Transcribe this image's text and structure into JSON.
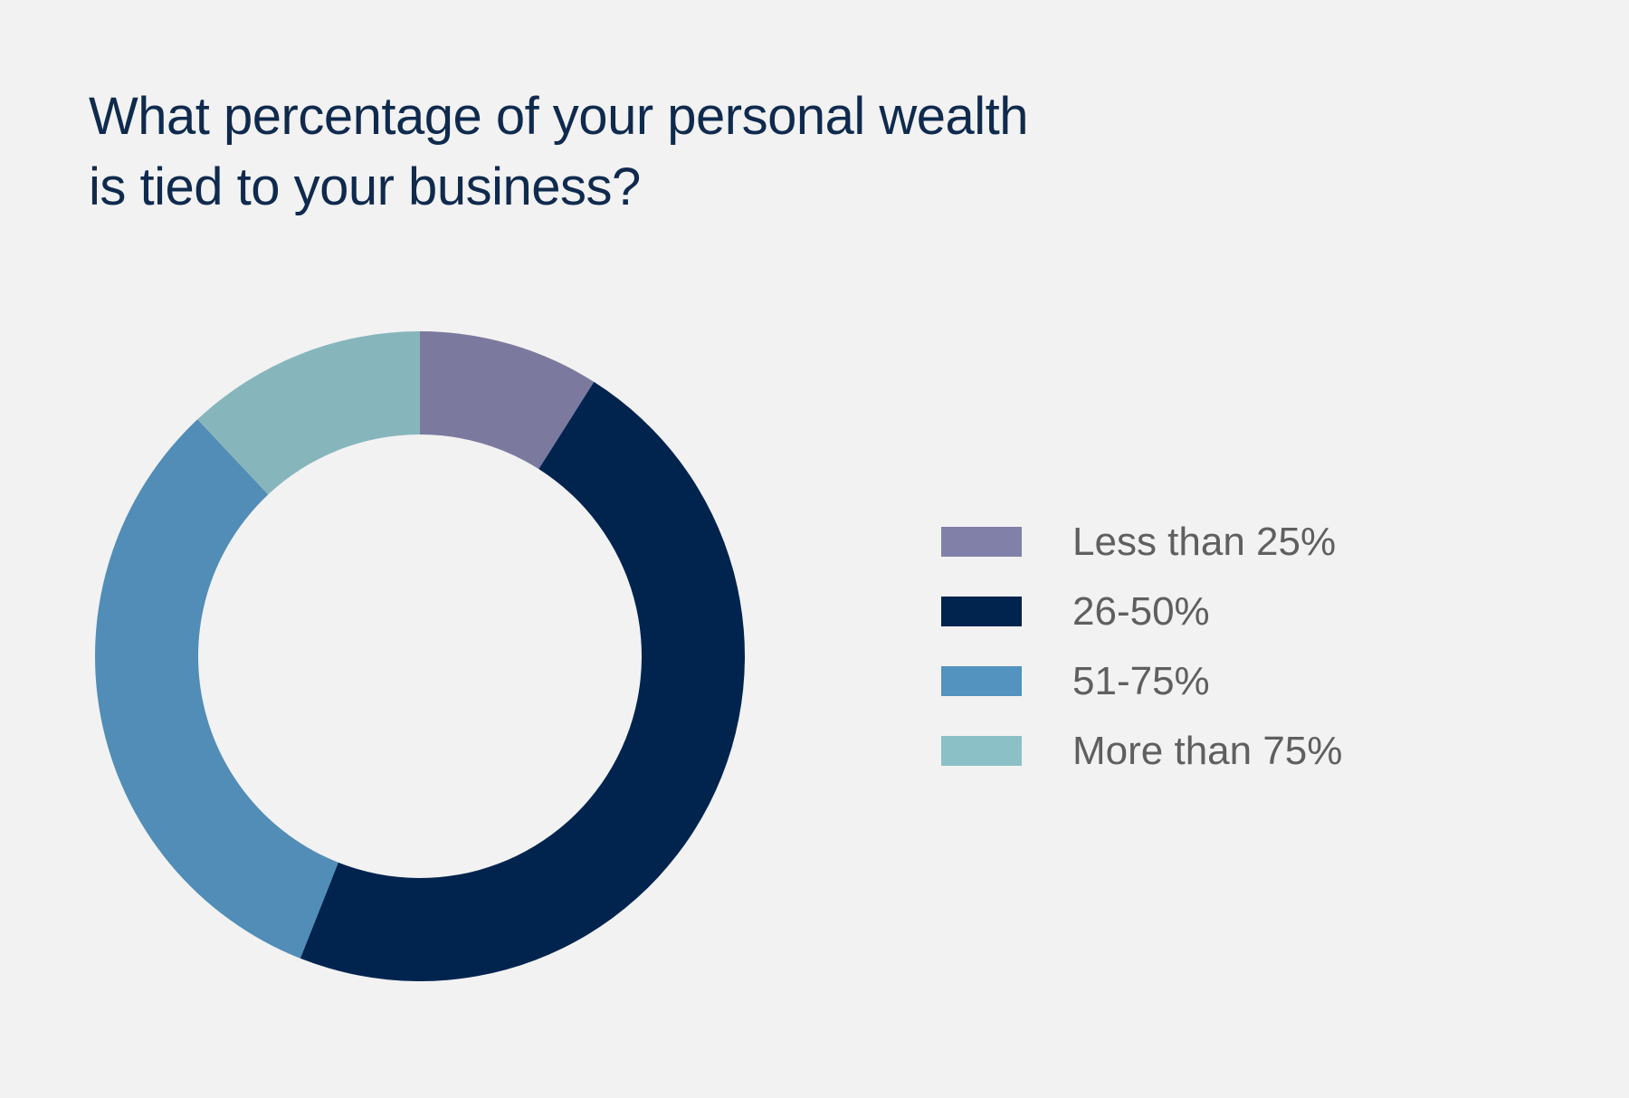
{
  "chart_data": {
    "type": "pie",
    "variant": "donut",
    "title": "What percentage of your personal wealth is tied to your business?",
    "title_lines": [
      "What percentage of your personal wealth",
      "is tied to your business?"
    ],
    "categories": [
      "Less than 25%",
      "26-50%",
      "51-75%",
      "More than 75%"
    ],
    "values": [
      9,
      47,
      32,
      12
    ],
    "value_unit": "percent (estimated from slice angles)",
    "colors": [
      "#7b7a9e",
      "#01244f",
      "#518db6",
      "#86b6bc"
    ],
    "legend_colors": [
      "#8080a8",
      "#01244f",
      "#5293bf",
      "#8cc0c7"
    ],
    "legend_position": "right",
    "start_angle": "top, clockwise"
  }
}
